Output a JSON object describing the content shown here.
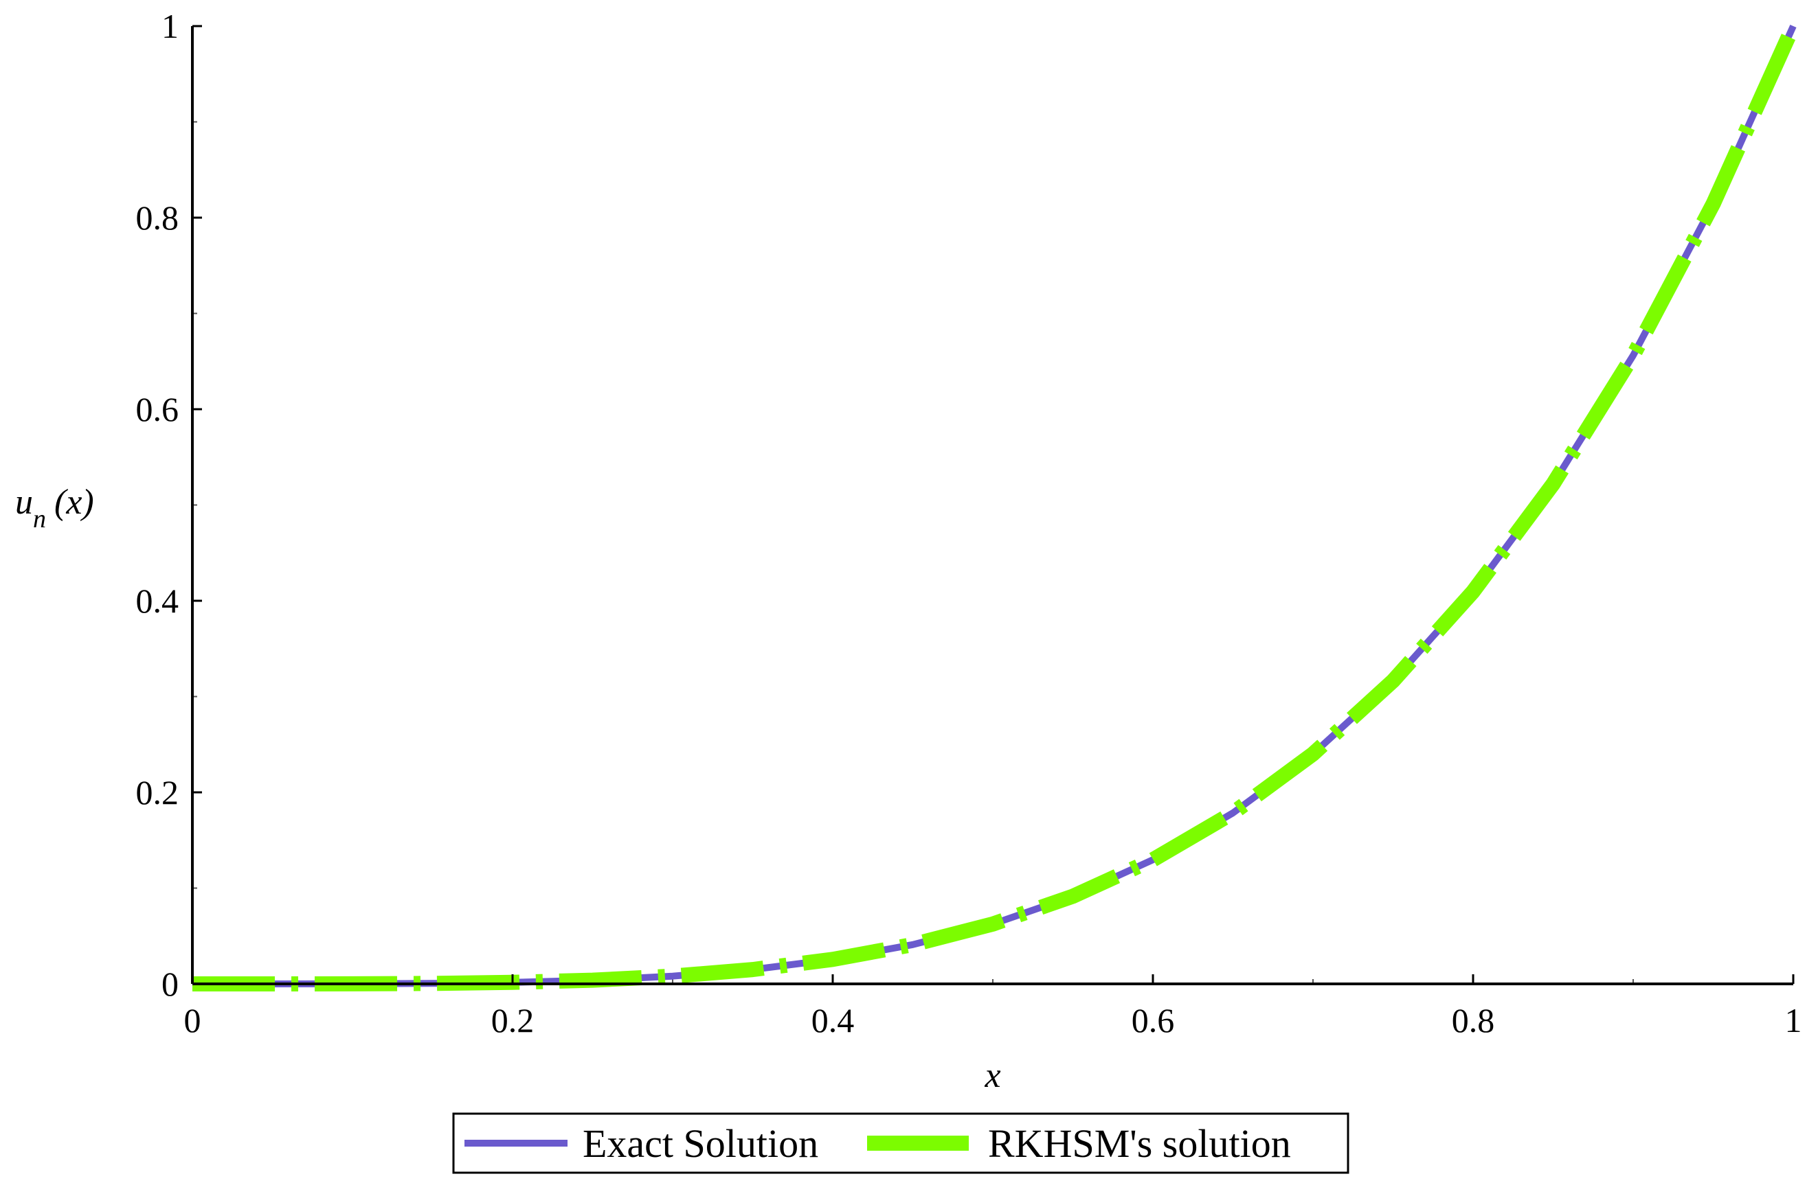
{
  "chart_data": {
    "type": "line",
    "xlabel": "x",
    "ylabel": {
      "main": "u",
      "sub": "n",
      "arg": "(x)"
    },
    "xlim": [
      0,
      1
    ],
    "ylim": [
      0,
      1
    ],
    "x_ticks": [
      0,
      0.2,
      0.4,
      0.6,
      0.8,
      1
    ],
    "x_tick_labels": [
      "0",
      "0.2",
      "0.4",
      "0.6",
      "0.8",
      "1"
    ],
    "y_ticks": [
      0,
      0.2,
      0.4,
      0.6,
      0.8,
      1
    ],
    "y_tick_labels": [
      "0",
      "0.2",
      "0.4",
      "0.6",
      "0.8",
      "1"
    ],
    "grid": false,
    "legend_position": "bottom-center",
    "series": [
      {
        "name": "Exact Solution",
        "color": "#6A5ACD",
        "style": "solid",
        "x": [
          0,
          0.05,
          0.1,
          0.15,
          0.2,
          0.25,
          0.3,
          0.35,
          0.4,
          0.45,
          0.5,
          0.55,
          0.6,
          0.65,
          0.7,
          0.75,
          0.8,
          0.85,
          0.9,
          0.95,
          1
        ],
        "y": [
          0,
          0.0,
          0.0001,
          0.0005,
          0.0016,
          0.0039,
          0.0081,
          0.015,
          0.0256,
          0.041,
          0.0625,
          0.0915,
          0.1296,
          0.1785,
          0.2401,
          0.3164,
          0.4096,
          0.522,
          0.6561,
          0.8145,
          1
        ]
      },
      {
        "name": "RKHSM's solution",
        "color": "#7CFC00",
        "style": "dashed",
        "x": [
          0,
          0.05,
          0.1,
          0.15,
          0.2,
          0.25,
          0.3,
          0.35,
          0.4,
          0.45,
          0.5,
          0.55,
          0.6,
          0.65,
          0.7,
          0.75,
          0.8,
          0.85,
          0.9,
          0.95,
          1
        ],
        "y": [
          0,
          0.0,
          0.0001,
          0.0005,
          0.0016,
          0.0039,
          0.0081,
          0.015,
          0.0256,
          0.041,
          0.0625,
          0.0915,
          0.1296,
          0.1785,
          0.2401,
          0.3164,
          0.4096,
          0.522,
          0.6561,
          0.8145,
          1
        ]
      }
    ]
  }
}
